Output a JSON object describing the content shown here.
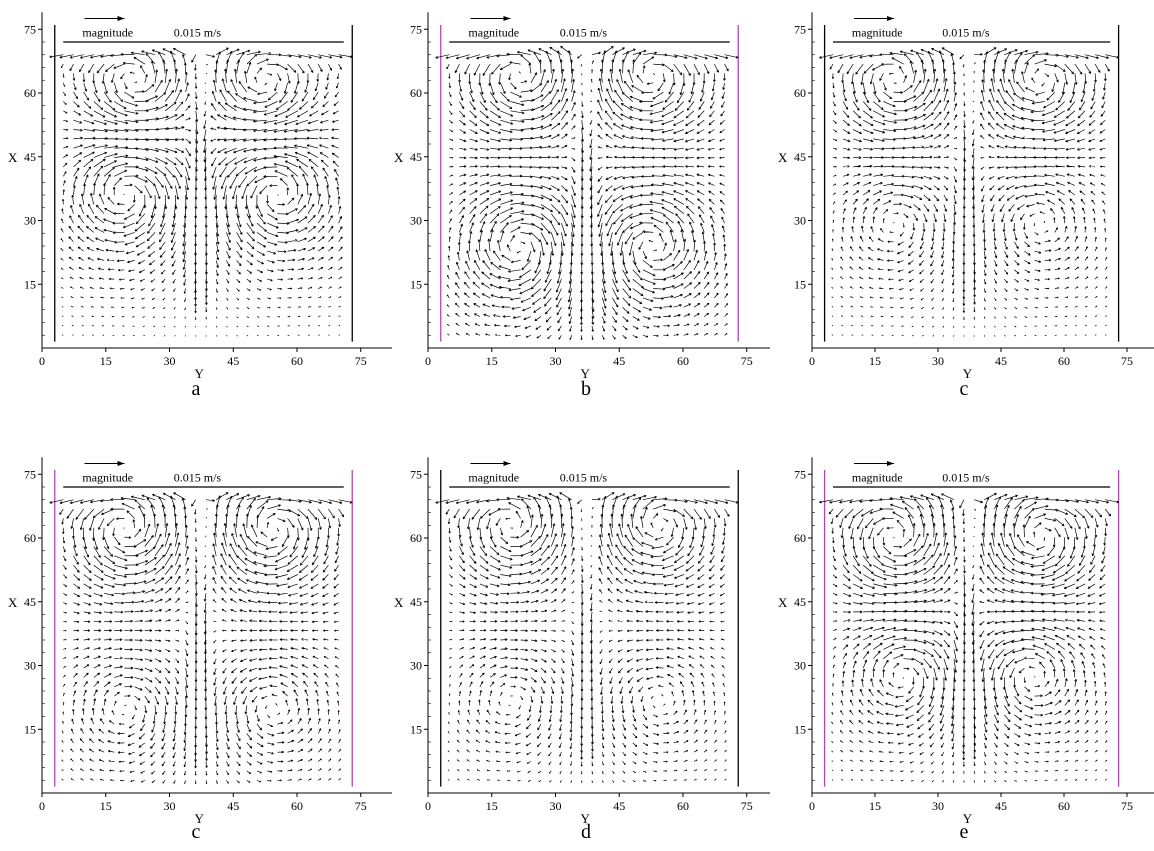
{
  "legend": {
    "label": "magnitude",
    "value": "0.015 m/s"
  },
  "chart_data": [
    {
      "type": "vector-field",
      "panel_label": "a",
      "xlabel": "Y",
      "ylabel": "X",
      "xlim": [
        0,
        80
      ],
      "ylim": [
        0,
        78
      ],
      "x_ticks": [
        0,
        15,
        30,
        45,
        60,
        75
      ],
      "y_ticks": [
        15,
        30,
        45,
        60,
        75
      ],
      "reference_vector": "0.015 m/s",
      "vortices": [
        {
          "y": 20,
          "x": 37,
          "strength": 0.011,
          "sense": "cw"
        },
        {
          "y": 55,
          "x": 37,
          "strength": 0.011,
          "sense": "ccw"
        },
        {
          "y": 22,
          "x": 62,
          "strength": 0.01,
          "sense": "ccw"
        },
        {
          "y": 52,
          "x": 62,
          "strength": 0.01,
          "sense": "cw"
        }
      ],
      "plume": {
        "y": 37,
        "x": 60,
        "strength": 0.012
      },
      "wall_color": "#000000"
    },
    {
      "type": "vector-field",
      "panel_label": "b",
      "xlabel": "Y",
      "ylabel": "X",
      "xlim": [
        0,
        80
      ],
      "ylim": [
        0,
        78
      ],
      "x_ticks": [
        0,
        15,
        30,
        45,
        60,
        75
      ],
      "y_ticks": [
        15,
        30,
        45,
        60,
        75
      ],
      "reference_vector": "0.015 m/s",
      "vortices": [
        {
          "y": 22,
          "x": 64,
          "strength": 0.011,
          "sense": "ccw"
        },
        {
          "y": 52,
          "x": 64,
          "strength": 0.011,
          "sense": "cw"
        },
        {
          "y": 22,
          "x": 24,
          "strength": 0.011,
          "sense": "cw"
        },
        {
          "y": 52,
          "x": 24,
          "strength": 0.011,
          "sense": "ccw"
        }
      ],
      "plume": {
        "y": 37,
        "x": 60,
        "strength": 0.012
      },
      "wall_color": "#cc33cc"
    },
    {
      "type": "vector-field",
      "panel_label": "c",
      "xlabel": "Y",
      "ylabel": "X",
      "xlim": [
        0,
        80
      ],
      "ylim": [
        0,
        78
      ],
      "x_ticks": [
        0,
        15,
        30,
        45,
        60,
        75
      ],
      "y_ticks": [
        15,
        30,
        45,
        60,
        75
      ],
      "reference_vector": "0.015 m/s",
      "vortices": [
        {
          "y": 20,
          "x": 63,
          "strength": 0.01,
          "sense": "ccw"
        },
        {
          "y": 54,
          "x": 63,
          "strength": 0.01,
          "sense": "cw"
        },
        {
          "y": 20,
          "x": 30,
          "strength": 0.006,
          "sense": "cw"
        },
        {
          "y": 54,
          "x": 30,
          "strength": 0.006,
          "sense": "ccw"
        }
      ],
      "plume": {
        "y": 37,
        "x": 60,
        "strength": 0.01
      },
      "wall_color": "#000000"
    },
    {
      "type": "vector-field",
      "panel_label": "c",
      "xlabel": "Y",
      "ylabel": "X",
      "xlim": [
        0,
        80
      ],
      "ylim": [
        0,
        78
      ],
      "x_ticks": [
        0,
        15,
        30,
        45,
        60,
        75
      ],
      "y_ticks": [
        15,
        30,
        45,
        60,
        75
      ],
      "reference_vector": "0.015 m/s",
      "vortices": [
        {
          "y": 20,
          "x": 62,
          "strength": 0.011,
          "sense": "ccw"
        },
        {
          "y": 54,
          "x": 62,
          "strength": 0.011,
          "sense": "cw"
        },
        {
          "y": 20,
          "x": 20,
          "strength": 0.006,
          "sense": "cw"
        },
        {
          "y": 54,
          "x": 20,
          "strength": 0.006,
          "sense": "ccw"
        }
      ],
      "plume": {
        "y": 37,
        "x": 60,
        "strength": 0.012
      },
      "wall_color": "#cc33cc"
    },
    {
      "type": "vector-field",
      "panel_label": "d",
      "xlabel": "Y",
      "ylabel": "X",
      "xlim": [
        0,
        80
      ],
      "ylim": [
        0,
        78
      ],
      "x_ticks": [
        0,
        15,
        30,
        45,
        60,
        75
      ],
      "y_ticks": [
        15,
        30,
        45,
        60,
        75
      ],
      "reference_vector": "0.015 m/s",
      "vortices": [
        {
          "y": 20,
          "x": 63,
          "strength": 0.01,
          "sense": "ccw"
        },
        {
          "y": 54,
          "x": 63,
          "strength": 0.01,
          "sense": "cw"
        },
        {
          "y": 20,
          "x": 22,
          "strength": 0.005,
          "sense": "cw"
        },
        {
          "y": 54,
          "x": 22,
          "strength": 0.005,
          "sense": "ccw"
        }
      ],
      "plume": {
        "y": 37,
        "x": 60,
        "strength": 0.01
      },
      "wall_color": "#000000"
    },
    {
      "type": "vector-field",
      "panel_label": "e",
      "xlabel": "Y",
      "ylabel": "X",
      "xlim": [
        0,
        80
      ],
      "ylim": [
        0,
        78
      ],
      "x_ticks": [
        0,
        15,
        30,
        45,
        60,
        75
      ],
      "y_ticks": [
        15,
        30,
        45,
        60,
        75
      ],
      "reference_vector": "0.015 m/s",
      "vortices": [
        {
          "y": 20,
          "x": 60,
          "strength": 0.011,
          "sense": "ccw"
        },
        {
          "y": 54,
          "x": 60,
          "strength": 0.011,
          "sense": "cw"
        },
        {
          "y": 22,
          "x": 28,
          "strength": 0.008,
          "sense": "cw"
        },
        {
          "y": 52,
          "x": 28,
          "strength": 0.008,
          "sense": "ccw"
        }
      ],
      "plume": {
        "y": 37,
        "x": 60,
        "strength": 0.012
      },
      "wall_color": "#cc33cc"
    }
  ]
}
